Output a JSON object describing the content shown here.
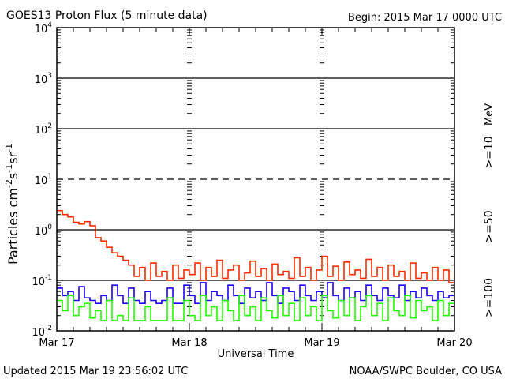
{
  "chart_data": {
    "type": "line",
    "title": "GOES13 Proton Flux (5 minute data)",
    "begin_label": "Begin: 2015 Mar 17 0000 UTC",
    "xlabel": "Universal Time",
    "ylabel": "Particles cm",
    "ylabel_parts": [
      "Particles cm",
      "-2",
      "s",
      "-1",
      "sr",
      "-1"
    ],
    "yscale": "log",
    "ylim": [
      0.01,
      10000
    ],
    "ytick_bases": [
      "10",
      "10",
      "10",
      "10",
      "10",
      "10",
      "10"
    ],
    "ytick_exponents": [
      "-2",
      "-1",
      "0",
      "1",
      "2",
      "3",
      "4"
    ],
    "xlim_hours": [
      0,
      72
    ],
    "xtick_labels": [
      "Mar 17",
      "Mar 18",
      "Mar 19",
      "Mar 20"
    ],
    "dashed_threshold": 10,
    "unit_label": "MeV",
    "grid": true,
    "x_hours_step": 1,
    "series": [
      {
        "name": ">=10",
        "color": "#ff2a00",
        "values": [
          2.4,
          2.0,
          1.8,
          1.4,
          1.3,
          1.45,
          1.2,
          0.7,
          0.6,
          0.45,
          0.35,
          0.3,
          0.25,
          0.2,
          0.12,
          0.18,
          0.1,
          0.22,
          0.12,
          0.15,
          0.1,
          0.2,
          0.11,
          0.16,
          0.13,
          0.22,
          0.1,
          0.18,
          0.12,
          0.25,
          0.11,
          0.16,
          0.2,
          0.1,
          0.14,
          0.24,
          0.12,
          0.17,
          0.1,
          0.21,
          0.13,
          0.15,
          0.11,
          0.28,
          0.12,
          0.18,
          0.1,
          0.16,
          0.3,
          0.12,
          0.19,
          0.1,
          0.23,
          0.13,
          0.16,
          0.11,
          0.26,
          0.12,
          0.18,
          0.1,
          0.2,
          0.12,
          0.15,
          0.1,
          0.22,
          0.11,
          0.14,
          0.1,
          0.18,
          0.1,
          0.16,
          0.09
        ]
      },
      {
        "name": ">=50",
        "color": "#1a00ff",
        "values": [
          0.07,
          0.05,
          0.06,
          0.04,
          0.075,
          0.045,
          0.04,
          0.035,
          0.05,
          0.04,
          0.08,
          0.05,
          0.035,
          0.07,
          0.04,
          0.035,
          0.06,
          0.04,
          0.035,
          0.04,
          0.07,
          0.035,
          0.035,
          0.08,
          0.05,
          0.035,
          0.09,
          0.04,
          0.06,
          0.05,
          0.04,
          0.08,
          0.05,
          0.035,
          0.07,
          0.045,
          0.06,
          0.04,
          0.09,
          0.05,
          0.035,
          0.07,
          0.06,
          0.04,
          0.08,
          0.05,
          0.04,
          0.06,
          0.045,
          0.09,
          0.05,
          0.04,
          0.07,
          0.045,
          0.06,
          0.04,
          0.08,
          0.05,
          0.04,
          0.07,
          0.05,
          0.045,
          0.08,
          0.04,
          0.06,
          0.045,
          0.07,
          0.05,
          0.04,
          0.06,
          0.045,
          0.05
        ]
      },
      {
        "name": ">=100",
        "color": "#22ff00",
        "values": [
          0.04,
          0.025,
          0.05,
          0.02,
          0.03,
          0.035,
          0.018,
          0.025,
          0.016,
          0.04,
          0.016,
          0.02,
          0.016,
          0.045,
          0.016,
          0.016,
          0.03,
          0.016,
          0.016,
          0.016,
          0.045,
          0.016,
          0.016,
          0.04,
          0.02,
          0.016,
          0.05,
          0.02,
          0.03,
          0.016,
          0.04,
          0.025,
          0.016,
          0.05,
          0.02,
          0.03,
          0.016,
          0.045,
          0.025,
          0.018,
          0.05,
          0.02,
          0.035,
          0.016,
          0.045,
          0.02,
          0.03,
          0.016,
          0.05,
          0.025,
          0.018,
          0.04,
          0.02,
          0.045,
          0.016,
          0.03,
          0.05,
          0.02,
          0.035,
          0.016,
          0.045,
          0.025,
          0.02,
          0.05,
          0.018,
          0.04,
          0.025,
          0.03,
          0.016,
          0.04,
          0.02,
          0.035
        ]
      }
    ]
  },
  "footer": {
    "updated": "Updated 2015 Mar 19 23:56:02 UTC",
    "credit": "NOAA/SWPC Boulder, CO USA"
  }
}
